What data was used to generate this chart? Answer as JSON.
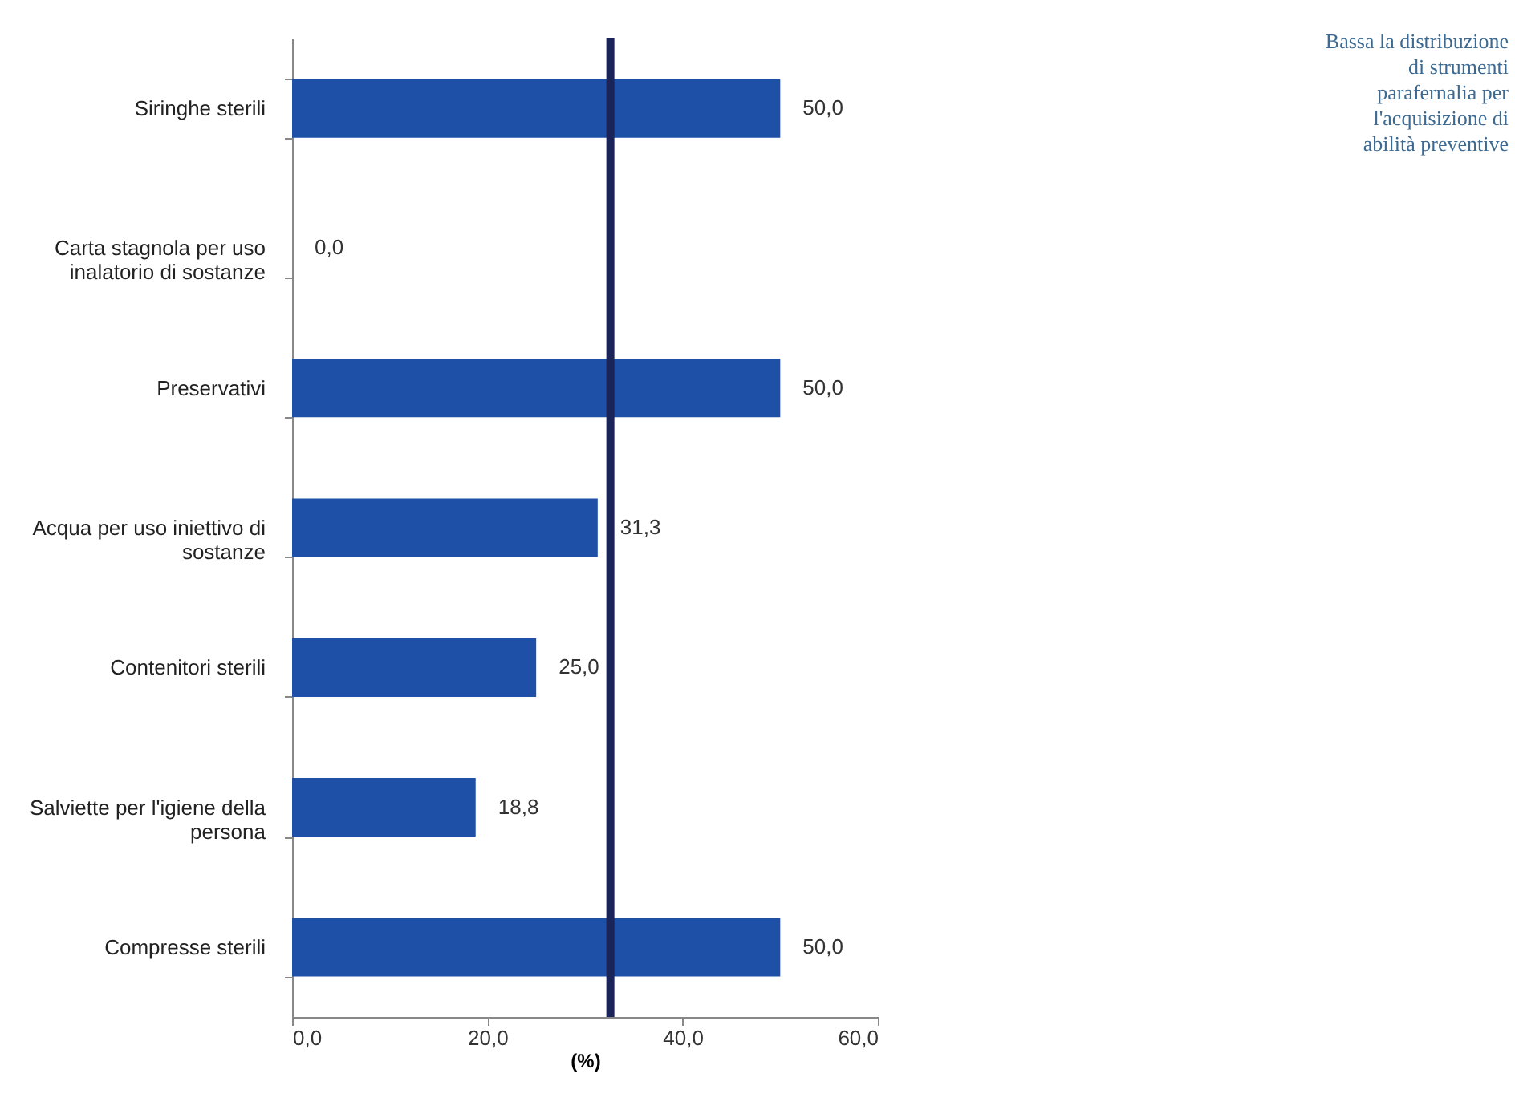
{
  "chart_data": {
    "type": "bar",
    "orientation": "horizontal",
    "xlabel": "(%)",
    "categories": [
      "Siringhe sterili",
      "Carta stagnola per uso inalatorio di sostanze",
      "Preservativi",
      "Acqua per uso iniettivo di sostanze",
      "Contenitori sterili",
      "Salviette per l'igiene della persona",
      "Compresse sterili"
    ],
    "values": [
      50.0,
      0.0,
      50.0,
      31.3,
      25.0,
      18.8,
      50.0
    ],
    "value_labels": [
      "50,0",
      "0,0",
      "50,0",
      "31,3",
      "25,0",
      "18,8",
      "50,0"
    ],
    "color": "#1f50a8",
    "xlim": [
      0,
      60
    ],
    "xticks": [
      {
        "value": 0,
        "label": "0,0"
      },
      {
        "value": 20,
        "label": "20,0"
      },
      {
        "value": 40,
        "label": "40,0"
      },
      {
        "value": 60,
        "label": "60,0"
      }
    ],
    "ref_lines": [
      {
        "axis": "x",
        "value": 32.6,
        "color": "#1a2458"
      }
    ],
    "annotations": [
      "Bassa la distribuzione di strumenti parafernalia per l'acquisizione di abilità preventive"
    ],
    "grid": false
  }
}
